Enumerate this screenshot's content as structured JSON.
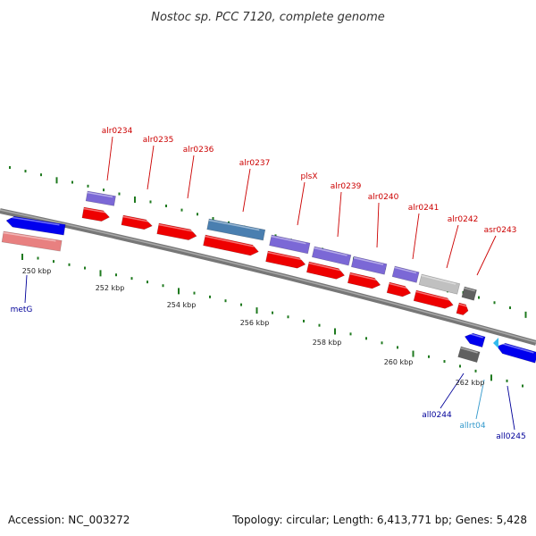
{
  "title": "Nostoc sp. PCC 7120, complete genome",
  "footer": {
    "accession": "Accession: NC_003272",
    "summary": "Topology: circular; Length: 6,413,771 bp; Genes: 5,428"
  },
  "colors": {
    "backbone": "#808080",
    "tick_dot": "#1f7a1f",
    "forward_label": "#cc0000",
    "reverse_label": "#000099",
    "rna_label": "#3399cc",
    "cds_forward": "#ee0000",
    "cds_reverse": "#0000ee",
    "gene_purple": "#7b68d6",
    "gene_steel": "#4a7fb0",
    "gene_grey": "#c0c0c0",
    "gene_dark": "#606060",
    "gene_pink": "#e88080",
    "trna": "#33bbee"
  },
  "scale": {
    "labels": [
      {
        "text": "250 kbp",
        "kbp": 250
      },
      {
        "text": "252 kbp",
        "kbp": 252
      },
      {
        "text": "254 kbp",
        "kbp": 254
      },
      {
        "text": "256 kbp",
        "kbp": 256
      },
      {
        "text": "258 kbp",
        "kbp": 258
      },
      {
        "text": "260 kbp",
        "kbp": 260
      },
      {
        "text": "262 kbp",
        "kbp": 262
      }
    ]
  },
  "genes_forward": [
    {
      "name": "alr0234"
    },
    {
      "name": "alr0235"
    },
    {
      "name": "alr0236"
    },
    {
      "name": "alr0237"
    },
    {
      "name": "plsX"
    },
    {
      "name": "alr0239"
    },
    {
      "name": "alr0240"
    },
    {
      "name": "alr0241"
    },
    {
      "name": "alr0242"
    },
    {
      "name": "asr0243"
    }
  ],
  "genes_reverse": [
    {
      "name": "metG"
    },
    {
      "name": "all0244"
    },
    {
      "name": "allrt04"
    },
    {
      "name": "all0245"
    }
  ]
}
